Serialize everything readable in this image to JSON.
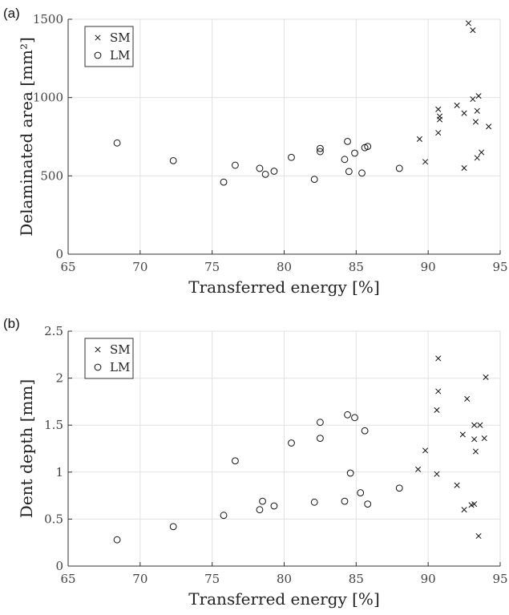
{
  "chart_data": [
    {
      "type": "scatter",
      "panel_label": "(a)",
      "xlabel": "Transferred energy [%]",
      "ylabel": "Delaminated area [mm²]",
      "xlim": [
        65,
        95
      ],
      "ylim": [
        0,
        1500
      ],
      "xticks": [
        65,
        70,
        75,
        80,
        85,
        90,
        95
      ],
      "yticks": [
        0,
        500,
        1000,
        1500
      ],
      "grid": true,
      "legend_position": "top-left",
      "series": [
        {
          "name": "SM",
          "marker": "x",
          "points": [
            [
              92.8,
              1475
            ],
            [
              93.1,
              1430
            ],
            [
              93.5,
              1010
            ],
            [
              93.1,
              990
            ],
            [
              92.0,
              950
            ],
            [
              90.7,
              925
            ],
            [
              93.4,
              915
            ],
            [
              92.5,
              900
            ],
            [
              90.8,
              880
            ],
            [
              90.8,
              860
            ],
            [
              93.3,
              845
            ],
            [
              94.2,
              815
            ],
            [
              90.7,
              775
            ],
            [
              89.4,
              735
            ],
            [
              93.7,
              650
            ],
            [
              93.4,
              615
            ],
            [
              89.8,
              590
            ],
            [
              92.5,
              550
            ]
          ]
        },
        {
          "name": "LM",
          "marker": "o",
          "points": [
            [
              68.4,
              710
            ],
            [
              72.3,
              597
            ],
            [
              75.8,
              460
            ],
            [
              76.6,
              568
            ],
            [
              78.3,
              548
            ],
            [
              78.7,
              510
            ],
            [
              79.3,
              530
            ],
            [
              80.5,
              618
            ],
            [
              82.1,
              478
            ],
            [
              82.5,
              675
            ],
            [
              82.5,
              655
            ],
            [
              84.2,
              605
            ],
            [
              84.4,
              720
            ],
            [
              84.5,
              528
            ],
            [
              84.9,
              645
            ],
            [
              85.4,
              518
            ],
            [
              85.6,
              680
            ],
            [
              85.8,
              688
            ],
            [
              88.0,
              548
            ]
          ]
        }
      ]
    },
    {
      "type": "scatter",
      "panel_label": "(b)",
      "xlabel": "Transferred energy [%]",
      "ylabel": "Dent depth [mm]",
      "xlim": [
        65,
        95
      ],
      "ylim": [
        0,
        2.5
      ],
      "xticks": [
        65,
        70,
        75,
        80,
        85,
        90,
        95
      ],
      "yticks": [
        0,
        0.5,
        1,
        1.5,
        2,
        2.5
      ],
      "grid": true,
      "legend_position": "top-left",
      "series": [
        {
          "name": "SM",
          "marker": "x",
          "points": [
            [
              90.7,
              2.21
            ],
            [
              94.0,
              2.01
            ],
            [
              90.7,
              1.86
            ],
            [
              92.7,
              1.78
            ],
            [
              90.6,
              1.66
            ],
            [
              93.2,
              1.5
            ],
            [
              93.6,
              1.5
            ],
            [
              92.4,
              1.4
            ],
            [
              93.9,
              1.36
            ],
            [
              93.2,
              1.35
            ],
            [
              89.8,
              1.23
            ],
            [
              93.3,
              1.22
            ],
            [
              89.3,
              1.03
            ],
            [
              90.6,
              0.98
            ],
            [
              92.0,
              0.86
            ],
            [
              93.2,
              0.66
            ],
            [
              93.0,
              0.65
            ],
            [
              92.5,
              0.6
            ],
            [
              93.5,
              0.32
            ]
          ]
        },
        {
          "name": "LM",
          "marker": "o",
          "points": [
            [
              68.4,
              0.28
            ],
            [
              72.3,
              0.42
            ],
            [
              75.8,
              0.54
            ],
            [
              76.6,
              1.12
            ],
            [
              78.3,
              0.6
            ],
            [
              78.5,
              0.69
            ],
            [
              79.3,
              0.64
            ],
            [
              80.5,
              1.31
            ],
            [
              82.1,
              0.68
            ],
            [
              82.5,
              1.53
            ],
            [
              82.5,
              1.36
            ],
            [
              84.2,
              0.69
            ],
            [
              84.4,
              1.61
            ],
            [
              84.6,
              0.99
            ],
            [
              84.9,
              1.58
            ],
            [
              85.3,
              0.78
            ],
            [
              85.6,
              1.44
            ],
            [
              85.8,
              0.66
            ],
            [
              88.0,
              0.83
            ]
          ]
        }
      ]
    }
  ]
}
